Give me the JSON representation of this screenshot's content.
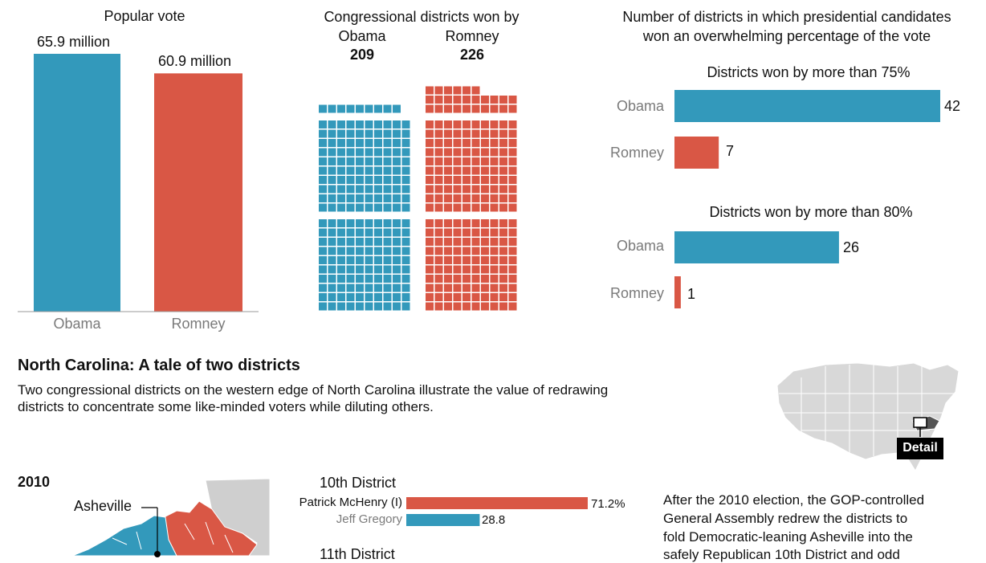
{
  "colors": {
    "obama": "#3399bb",
    "romney": "#d95745",
    "axis": "#999999",
    "map_gray": "#d6d6d6",
    "label_gray": "#7a7a7a"
  },
  "popular_vote": {
    "title": "Popular vote",
    "bars": [
      {
        "name": "Obama",
        "value_label": "65.9 million"
      },
      {
        "name": "Romney",
        "value_label": "60.9 million"
      }
    ]
  },
  "districts": {
    "title": "Congressional districts won by",
    "obama": {
      "name": "Obama",
      "value": "209"
    },
    "romney": {
      "name": "Romney",
      "value": "226"
    }
  },
  "overwhelming": {
    "title_line1": "Number of districts in which presidential candidates",
    "title_line2": "won an overwhelming percentage of the vote",
    "group1_title": "Districts won by more than 75%",
    "group2_title": "Districts won by more than 80%",
    "labels": {
      "obama": "Obama",
      "romney": "Romney"
    },
    "group1_values": {
      "obama": "42",
      "romney": "7"
    },
    "group2_values": {
      "obama": "26",
      "romney": "1"
    }
  },
  "nc": {
    "title": "North Carolina: A tale of two districts",
    "desc_line1": "Two congressional districts on the western edge of North Carolina illustrate the value of redrawing",
    "desc_line2": "districts to concentrate some like-minded voters while diluting others.",
    "detail_label": "Detail",
    "year": "2010",
    "city": "Asheville",
    "district10_title": "10th District",
    "district11_title": "11th District",
    "candidates": [
      {
        "name": "Patrick McHenry (I)",
        "value_label": "71.2%"
      },
      {
        "name": "Jeff Gregory",
        "value_label": "28.8"
      }
    ],
    "text_line1": "After the 2010 election, the GOP-controlled",
    "text_line2": "General Assembly redrew the districts to",
    "text_line3": "fold Democratic-leaning Asheville into the",
    "text_line4": "safely Republican 10th District and odd"
  },
  "chart_data": [
    {
      "type": "bar",
      "title": "Popular vote",
      "categories": [
        "Obama",
        "Romney"
      ],
      "values": [
        65.9,
        60.9
      ],
      "unit": "million",
      "ylim": [
        0,
        65.9
      ],
      "grid": false
    },
    {
      "type": "waffle",
      "title": "Congressional districts won by",
      "categories": [
        "Obama",
        "Romney"
      ],
      "values": [
        209,
        226
      ],
      "grid": false
    },
    {
      "type": "bar",
      "orientation": "horizontal",
      "title": "Number of districts in which presidential candidates won an overwhelming percentage of the vote",
      "categories": [
        "Obama",
        "Romney"
      ],
      "series": [
        {
          "name": "Districts won by more than 75%",
          "values": [
            42,
            7
          ]
        },
        {
          "name": "Districts won by more than 80%",
          "values": [
            26,
            1
          ]
        }
      ],
      "xlim": [
        0,
        42
      ],
      "grid": false
    },
    {
      "type": "bar",
      "orientation": "horizontal",
      "title": "10th District",
      "categories": [
        "Patrick McHenry (I)",
        "Jeff Gregory"
      ],
      "values": [
        71.2,
        28.8
      ],
      "unit": "%",
      "xlim": [
        0,
        71.2
      ],
      "grid": false
    }
  ]
}
